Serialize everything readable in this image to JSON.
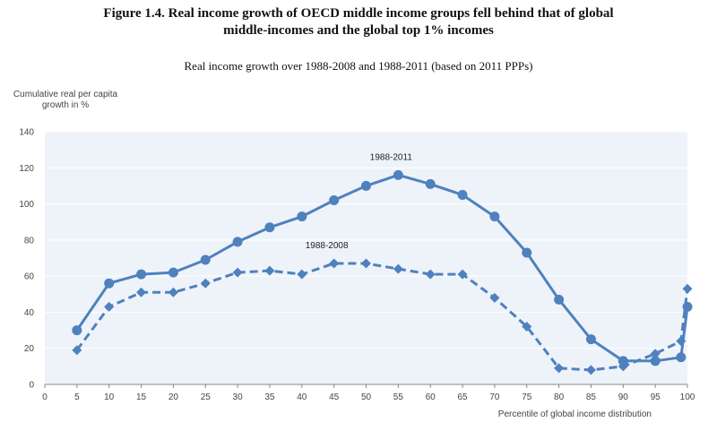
{
  "figure": {
    "title_line1": "Figure 1.4. Real income growth of OECD middle income groups fell behind that of global",
    "title_line2": "middle-incomes and the global top 1% incomes",
    "subtitle": "Real income growth over 1988-2008 and 1988-2011 (based on 2011 PPPs)"
  },
  "colors": {
    "series": "#4f81bd",
    "plot_bg": "#eef3fa",
    "grid": "#ffffff",
    "axis": "#888888"
  },
  "chart_data": {
    "type": "line",
    "ylabel_line1": "Cumulative real per capita",
    "ylabel_line2": "growth in %",
    "xlabel": "Percentile of global income distribution",
    "xlim": [
      0,
      100
    ],
    "ylim": [
      0,
      140
    ],
    "xticks": [
      0,
      5,
      10,
      15,
      20,
      25,
      30,
      35,
      40,
      45,
      50,
      55,
      60,
      65,
      70,
      75,
      80,
      85,
      90,
      95,
      100
    ],
    "yticks": [
      0,
      20,
      40,
      60,
      80,
      100,
      120,
      140
    ],
    "grid": true,
    "series": [
      {
        "name": "1988-2011",
        "style": "solid",
        "marker": "circle",
        "x": [
          5,
          10,
          15,
          20,
          25,
          30,
          35,
          40,
          45,
          50,
          55,
          60,
          65,
          70,
          75,
          80,
          85,
          90,
          95,
          99,
          100
        ],
        "values": [
          30,
          56,
          61,
          62,
          69,
          79,
          87,
          93,
          102,
          110,
          116,
          111,
          105,
          93,
          73,
          47,
          25,
          13,
          13,
          15,
          43
        ]
      },
      {
        "name": "1988-2008",
        "style": "dashed",
        "marker": "diamond",
        "x": [
          5,
          10,
          15,
          20,
          25,
          30,
          35,
          40,
          45,
          50,
          55,
          60,
          65,
          70,
          75,
          80,
          85,
          90,
          95,
          99,
          100
        ],
        "values": [
          19,
          43,
          51,
          51,
          56,
          62,
          63,
          61,
          67,
          67,
          64,
          61,
          61,
          48,
          32,
          9,
          8,
          10,
          17,
          24,
          53
        ]
      }
    ]
  }
}
